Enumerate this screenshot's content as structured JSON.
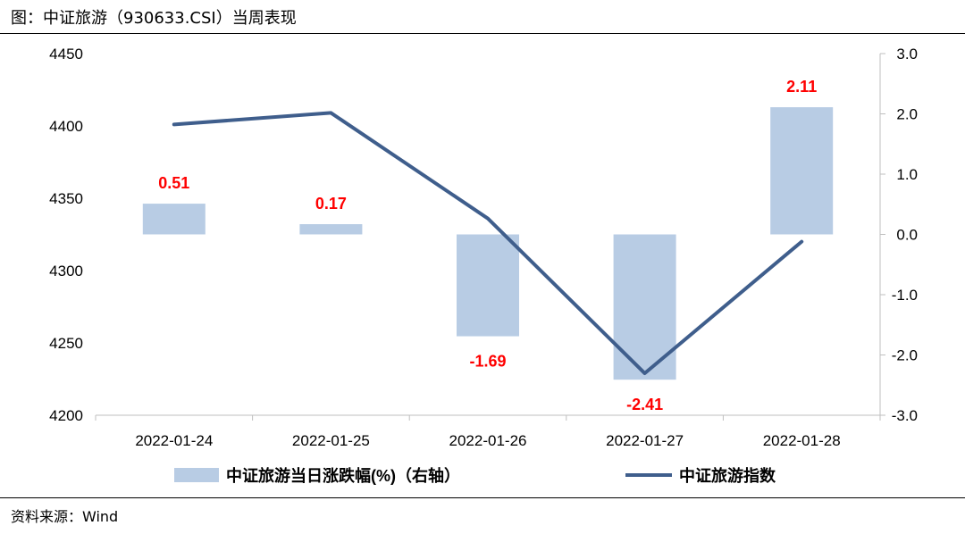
{
  "title": "图：中证旅游（930633.CSI）当周表现",
  "source": "资料来源：Wind",
  "colors": {
    "bar": "#b8cce4",
    "line": "#3f5e8c",
    "data_label": "#ff0000",
    "axis": "#bfbfbf"
  },
  "chart_data": {
    "type": "bar+line",
    "categories": [
      "2022-01-24",
      "2022-01-25",
      "2022-01-26",
      "2022-01-27",
      "2022-01-28"
    ],
    "series": [
      {
        "name": "中证旅游当日涨跌幅(%)（右轴）",
        "type": "bar",
        "axis": "right",
        "values": [
          0.51,
          0.17,
          -1.69,
          -2.41,
          2.11
        ]
      },
      {
        "name": "中证旅游指数",
        "type": "line",
        "axis": "left",
        "values": [
          4401,
          4409,
          4336,
          4229,
          4320
        ]
      }
    ],
    "data_labels": [
      "0.51",
      "0.17",
      "-1.69",
      "-2.41",
      "2.11"
    ],
    "left_axis": {
      "range": [
        4200,
        4450
      ],
      "ticks": [
        4200,
        4250,
        4300,
        4350,
        4400,
        4450
      ],
      "tick_labels": [
        "4200",
        "4250",
        "4300",
        "4350",
        "4400",
        "4450"
      ]
    },
    "right_axis": {
      "range": [
        -3.0,
        3.0
      ],
      "ticks": [
        -3,
        -2,
        -1,
        0,
        1,
        2,
        3
      ],
      "tick_labels": [
        "-3.0",
        "-2.0",
        "-1.0",
        "0.0",
        "1.0",
        "2.0",
        "3.0"
      ]
    },
    "grid": false,
    "legend_position": "bottom"
  }
}
